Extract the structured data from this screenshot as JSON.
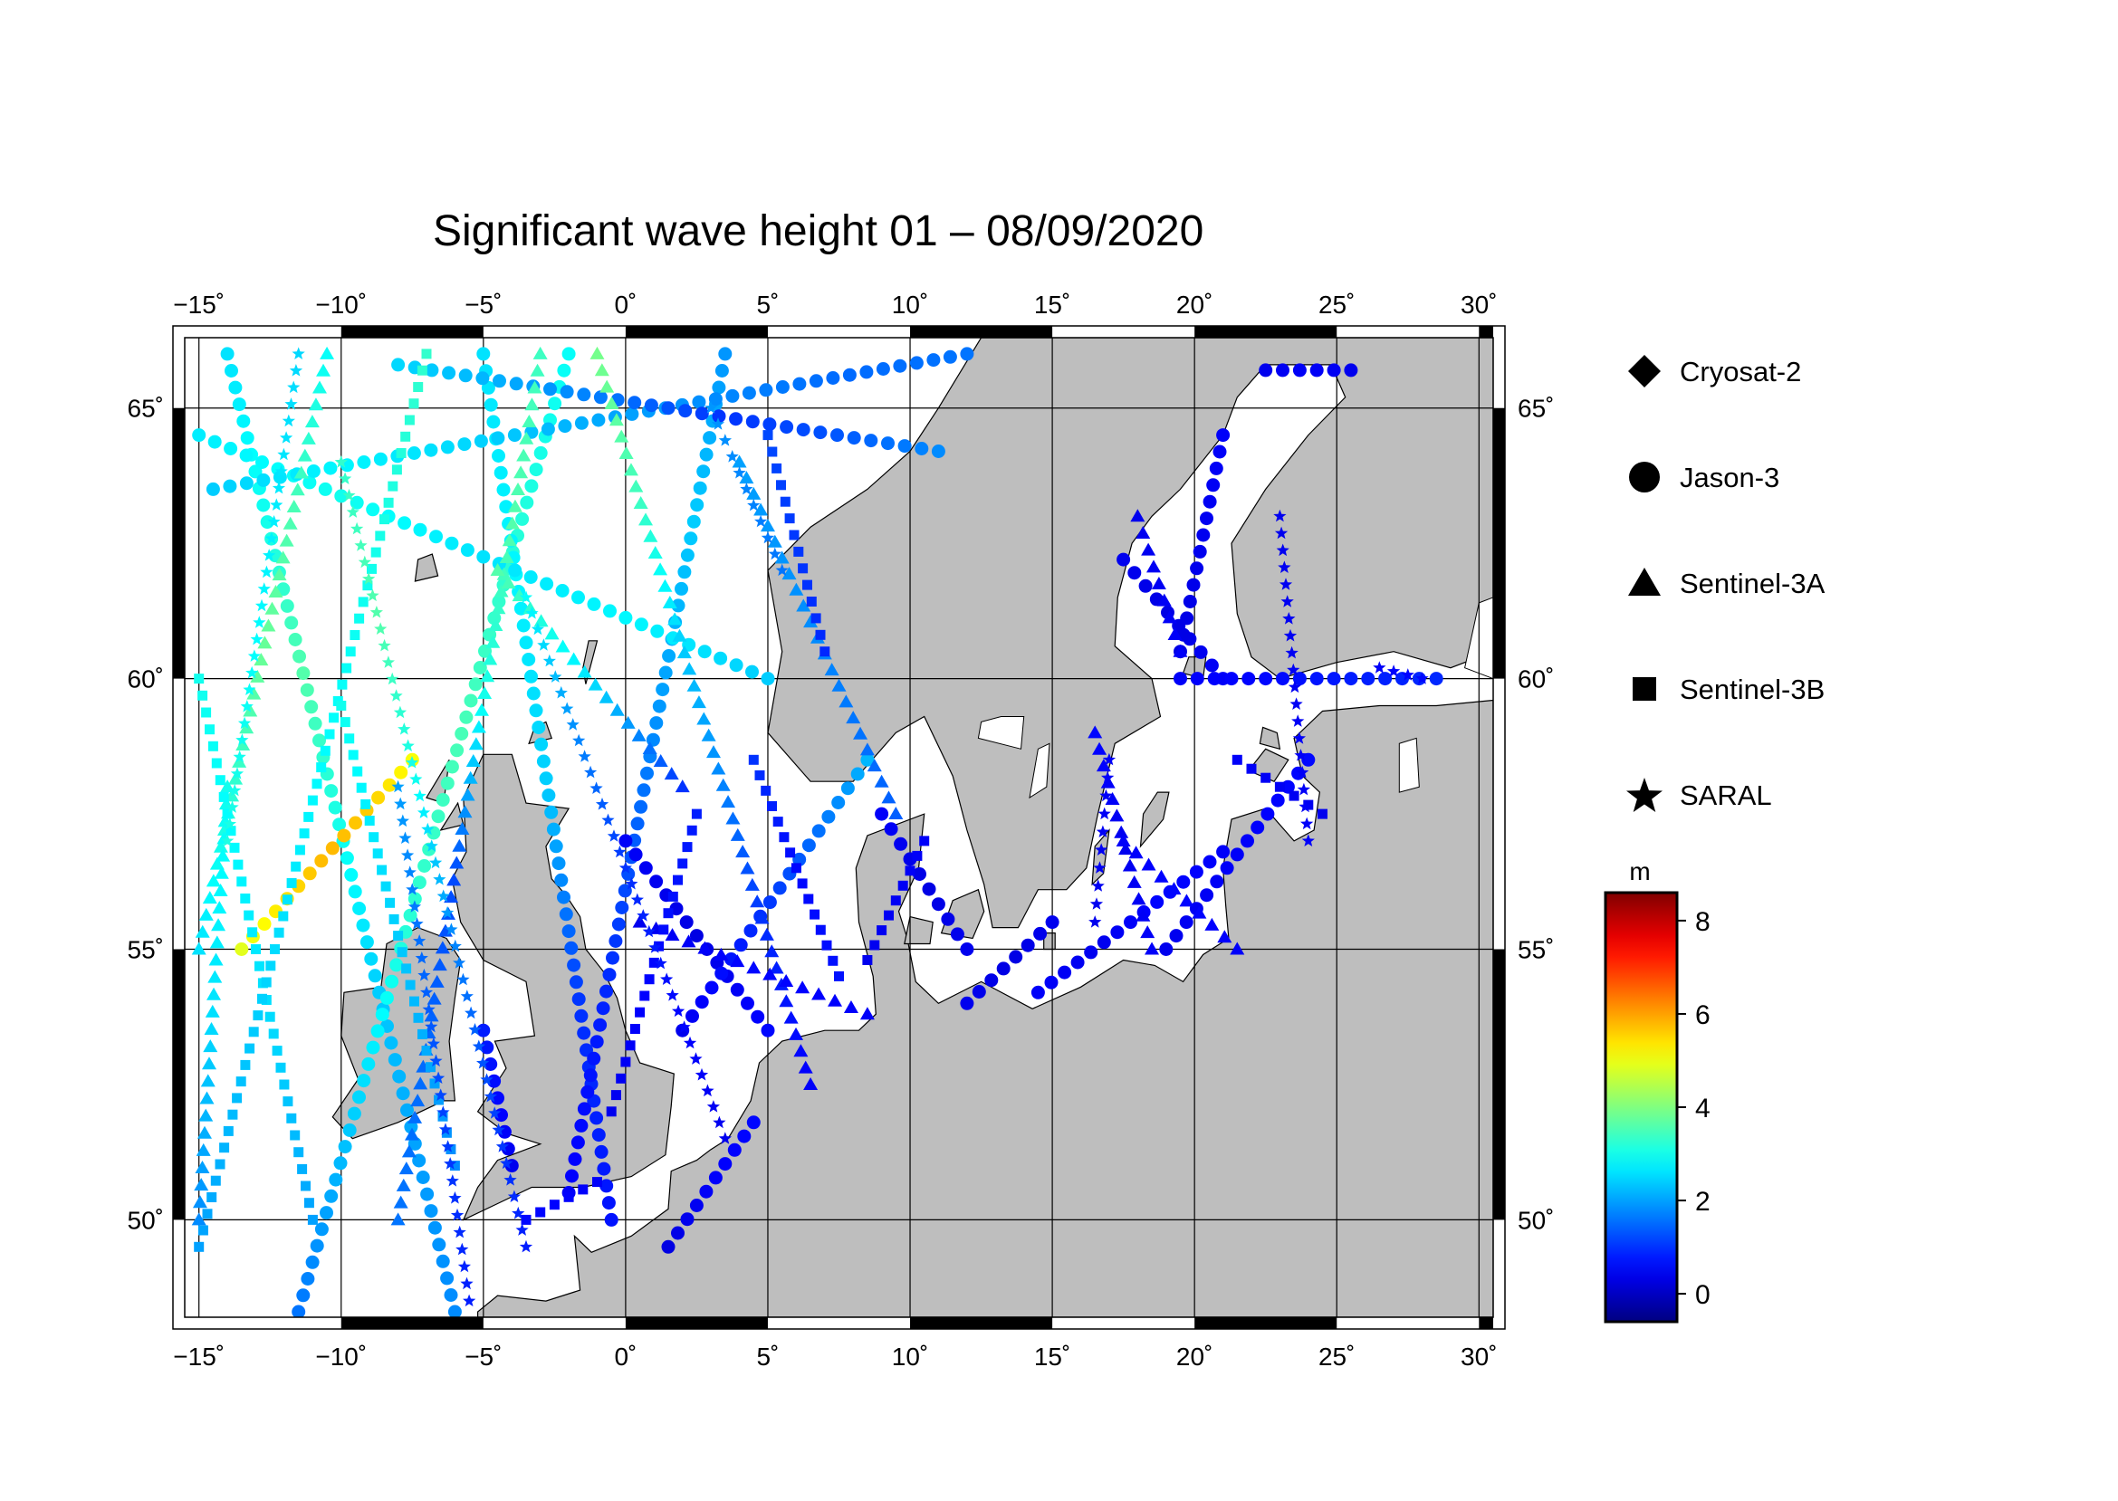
{
  "chart_data": {
    "type": "scatter",
    "title": "Significant wave height 01 – 08/09/2020",
    "map": {
      "lon_range": [
        -15.5,
        30.5
      ],
      "lat_range": [
        48.2,
        66.3
      ],
      "lon_ticks": [
        -15,
        -10,
        -5,
        0,
        5,
        10,
        15,
        20,
        25,
        30
      ],
      "lon_tick_labels": [
        "−15˚",
        "−10˚",
        "−5˚",
        "0˚",
        "5˚",
        "10˚",
        "15˚",
        "20˚",
        "25˚",
        "30˚"
      ],
      "lat_ticks": [
        50,
        55,
        60,
        65
      ],
      "lat_tick_labels": [
        "50˚",
        "55˚",
        "60˚",
        "65˚"
      ],
      "land_color": "#bebebe",
      "sea_color": "#ffffff",
      "grid": true
    },
    "colorbar": {
      "label": "m",
      "range": [
        -0.6,
        8.6
      ],
      "ticks": [
        0,
        2,
        4,
        6,
        8
      ],
      "tick_labels": [
        "0",
        "2",
        "4",
        "6",
        "8"
      ],
      "colormap": "jet"
    },
    "legend": {
      "position": "right",
      "entries": [
        {
          "name": "Cryosat-2",
          "marker": "diamond"
        },
        {
          "name": "Jason-3",
          "marker": "circle"
        },
        {
          "name": "Sentinel-3A",
          "marker": "triangle"
        },
        {
          "name": "Sentinel-3B",
          "marker": "square"
        },
        {
          "name": "SARAL",
          "marker": "star"
        }
      ]
    },
    "series": [
      {
        "name": "Jason-3",
        "marker": "circle",
        "tracks": [
          {
            "start": [
              -14.0,
              66.0
            ],
            "end": [
              -6.0,
              48.3
            ],
            "swh": [
              2.6,
              3.0,
              3.6,
              3.0,
              2.4,
              2.0,
              1.8
            ]
          },
          {
            "start": [
              -11.5,
              48.3
            ],
            "end": [
              -2.0,
              66.0
            ],
            "swh": [
              1.6,
              2.4,
              3.2,
              3.5,
              3.2,
              2.9
            ]
          },
          {
            "start": [
              -13.5,
              55.0
            ],
            "end": [
              -7.5,
              58.5
            ],
            "swh": [
              4.9,
              5.4,
              5.8,
              5.6,
              5.1
            ]
          },
          {
            "start": [
              -5.0,
              66.0
            ],
            "end": [
              -0.5,
              50.0
            ],
            "swh": [
              2.6,
              2.8,
              2.4,
              1.0,
              0.7
            ]
          },
          {
            "start": [
              -4.0,
              51.0
            ],
            "end": [
              -5.0,
              53.5
            ],
            "swh": [
              0.4,
              0.6,
              0.8
            ]
          },
          {
            "start": [
              3.5,
              66.0
            ],
            "end": [
              -2.0,
              50.5
            ],
            "swh": [
              1.9,
              2.4,
              2.0,
              1.3,
              0.8,
              0.5
            ]
          },
          {
            "start": [
              0.0,
              57.0
            ],
            "end": [
              5.0,
              53.5
            ],
            "swh": [
              0.5,
              0.3,
              0.6
            ]
          },
          {
            "start": [
              2.0,
              53.5
            ],
            "end": [
              8.5,
              58.5
            ],
            "swh": [
              0.4,
              0.7,
              1.1,
              1.6,
              2.2
            ]
          },
          {
            "start": [
              -15.0,
              64.5
            ],
            "end": [
              5.0,
              60.0
            ],
            "swh": [
              2.7,
              3.0,
              2.6,
              2.8,
              2.4
            ]
          },
          {
            "start": [
              -14.5,
              63.5
            ],
            "end": [
              12.0,
              66.0
            ],
            "swh": [
              2.4,
              2.8,
              2.5,
              2.1,
              1.8,
              1.5,
              1.6
            ]
          },
          {
            "start": [
              -8.0,
              65.8
            ],
            "end": [
              11.0,
              64.2
            ],
            "swh": [
              2.5,
              2.1,
              1.6,
              1.0,
              1.3,
              1.8
            ]
          },
          {
            "start": [
              9.0,
              57.5
            ],
            "end": [
              12.0,
              55.0
            ],
            "swh": [
              0.5,
              0.3,
              0.4
            ]
          },
          {
            "start": [
              12.0,
              54.0
            ],
            "end": [
              15.0,
              55.5
            ],
            "swh": [
              0.4,
              0.3,
              0.4
            ]
          },
          {
            "start": [
              14.5,
              54.2
            ],
            "end": [
              21.0,
              56.8
            ],
            "swh": [
              0.5,
              0.4,
              0.6,
              0.5
            ]
          },
          {
            "start": [
              17.5,
              62.2
            ],
            "end": [
              21.0,
              60.0
            ],
            "swh": [
              0.4,
              0.3,
              0.5
            ]
          },
          {
            "start": [
              19.5,
              60.0
            ],
            "end": [
              28.5,
              60.0
            ],
            "swh": [
              0.5,
              0.6,
              0.8,
              0.9
            ]
          },
          {
            "start": [
              21.0,
              64.5
            ],
            "end": [
              19.5,
              60.5
            ],
            "swh": [
              0.5,
              0.4,
              0.3
            ]
          },
          {
            "start": [
              22.5,
              65.7
            ],
            "end": [
              25.5,
              65.7
            ],
            "swh": [
              0.4,
              0.5,
              0.4
            ]
          },
          {
            "start": [
              24.0,
              58.5
            ],
            "end": [
              19.0,
              55.0
            ],
            "swh": [
              0.6,
              0.5,
              0.4
            ]
          },
          {
            "start": [
              1.5,
              49.5
            ],
            "end": [
              4.5,
              51.8
            ],
            "swh": [
              0.3,
              0.5,
              0.6
            ]
          }
        ]
      },
      {
        "name": "Sentinel-3A",
        "marker": "triangle",
        "tracks": [
          {
            "start": [
              -15.0,
              55.0
            ],
            "end": [
              -10.5,
              66.0
            ],
            "swh": [
              2.6,
              3.2,
              3.8,
              3.5,
              2.9
            ]
          },
          {
            "start": [
              -3.0,
              66.0
            ],
            "end": [
              -8.0,
              50.0
            ],
            "swh": [
              3.4,
              3.6,
              3.0,
              1.2,
              1.5,
              1.6
            ]
          },
          {
            "start": [
              -1.0,
              66.0
            ],
            "end": [
              6.5,
              52.5
            ],
            "swh": [
              3.9,
              3.4,
              2.4,
              1.7,
              0.9,
              0.5
            ]
          },
          {
            "start": [
              -4.5,
              62.0
            ],
            "end": [
              2.0,
              58.0
            ],
            "swh": [
              3.6,
              2.6,
              1.0
            ]
          },
          {
            "start": [
              0.5,
              55.5
            ],
            "end": [
              8.5,
              53.8
            ],
            "swh": [
              0.4,
              0.6,
              0.5
            ]
          },
          {
            "start": [
              4.0,
              64.0
            ],
            "end": [
              9.5,
              57.5
            ],
            "swh": [
              2.0,
              1.8,
              1.4
            ]
          },
          {
            "start": [
              16.5,
              59.0
            ],
            "end": [
              18.5,
              55.0
            ],
            "swh": [
              0.6,
              0.4,
              0.5
            ]
          },
          {
            "start": [
              17.5,
              57.0
            ],
            "end": [
              21.5,
              55.0
            ],
            "swh": [
              0.5,
              0.6,
              0.5
            ]
          },
          {
            "start": [
              18.0,
              63.0
            ],
            "end": [
              19.5,
              60.5
            ],
            "swh": [
              0.4,
              0.5
            ]
          },
          {
            "start": [
              -15.0,
              50.0
            ],
            "end": [
              -14.0,
              58.0
            ],
            "swh": [
              1.8,
              2.6,
              3.0
            ]
          }
        ]
      },
      {
        "name": "Sentinel-3B",
        "marker": "square",
        "tracks": [
          {
            "start": [
              -15.0,
              60.0
            ],
            "end": [
              -11.0,
              50.0
            ],
            "swh": [
              3.0,
              2.8,
              2.5,
              2.0
            ]
          },
          {
            "start": [
              -7.0,
              66.0
            ],
            "end": [
              -15.0,
              49.5
            ],
            "swh": [
              3.3,
              3.0,
              2.8,
              2.4,
              2.0
            ]
          },
          {
            "start": [
              -10.0,
              59.5
            ],
            "end": [
              -6.0,
              51.0
            ],
            "swh": [
              3.0,
              2.4,
              1.8
            ]
          },
          {
            "start": [
              2.5,
              57.5
            ],
            "end": [
              -0.5,
              52.0
            ],
            "swh": [
              0.8,
              0.6,
              0.4
            ]
          },
          {
            "start": [
              5.0,
              64.5
            ],
            "end": [
              7.0,
              60.5
            ],
            "swh": [
              1.2,
              0.9
            ]
          },
          {
            "start": [
              4.5,
              58.5
            ],
            "end": [
              7.5,
              54.5
            ],
            "swh": [
              1.0,
              0.6,
              0.7
            ]
          },
          {
            "start": [
              10.5,
              57.0
            ],
            "end": [
              8.5,
              54.8
            ],
            "swh": [
              0.5,
              0.4
            ]
          },
          {
            "start": [
              21.5,
              58.5
            ],
            "end": [
              24.5,
              57.5
            ],
            "swh": [
              0.5,
              0.4
            ]
          },
          {
            "start": [
              -3.5,
              50.0
            ],
            "end": [
              -1.0,
              50.7
            ],
            "swh": [
              0.6,
              0.5
            ]
          }
        ]
      },
      {
        "name": "SARAL",
        "marker": "star",
        "tracks": [
          {
            "start": [
              -10.0,
              64.0
            ],
            "end": [
              -3.5,
              49.5
            ],
            "swh": [
              3.3,
              3.6,
              3.0,
              1.8,
              1.2,
              0.8
            ]
          },
          {
            "start": [
              -3.5,
              61.5
            ],
            "end": [
              3.5,
              51.5
            ],
            "swh": [
              2.9,
              1.8,
              1.0,
              0.6,
              0.4
            ]
          },
          {
            "start": [
              -11.5,
              66.0
            ],
            "end": [
              -14.0,
              57.0
            ],
            "swh": [
              2.5,
              2.8,
              3.1
            ]
          },
          {
            "start": [
              -8.0,
              58.0
            ],
            "end": [
              -5.5,
              48.5
            ],
            "swh": [
              2.0,
              1.5,
              1.1,
              0.8
            ]
          },
          {
            "start": [
              3.0,
              65.0
            ],
            "end": [
              5.5,
              62.0
            ],
            "swh": [
              1.9,
              1.6
            ]
          },
          {
            "start": [
              17.0,
              58.5
            ],
            "end": [
              16.5,
              55.5
            ],
            "swh": [
              0.5,
              0.4
            ]
          },
          {
            "start": [
              23.0,
              63.0
            ],
            "end": [
              24.0,
              57.0
            ],
            "swh": [
              0.4,
              0.5
            ]
          },
          {
            "start": [
              26.5,
              60.2
            ],
            "end": [
              28.0,
              60.0
            ],
            "swh": [
              0.5,
              0.6
            ]
          }
        ]
      },
      {
        "name": "Cryosat-2",
        "marker": "diamond",
        "tracks": []
      }
    ]
  }
}
